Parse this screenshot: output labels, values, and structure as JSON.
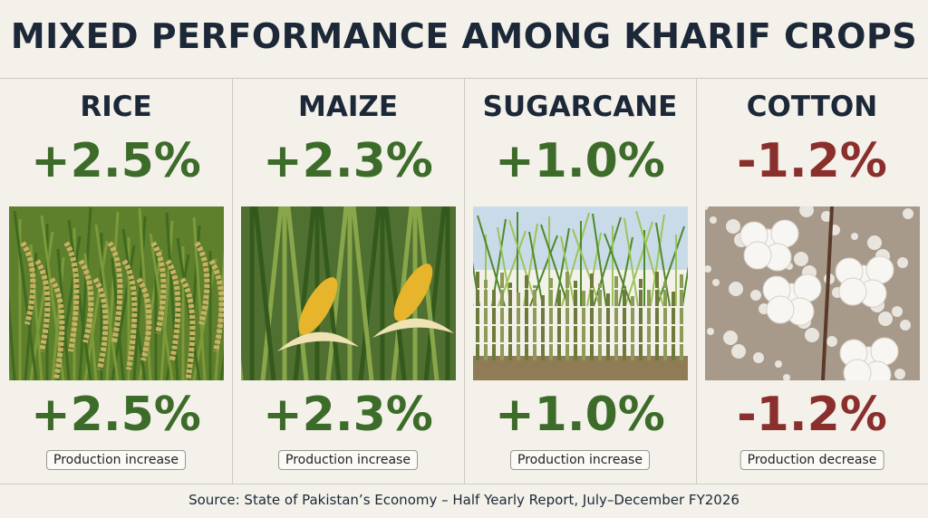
{
  "title": "MIXED PERFORMANCE AMONG KHARIF CROPS",
  "cards": [
    {
      "name": "RICE",
      "top_change": "+2.5%",
      "change": "+2.5%",
      "label": "Production increase",
      "color": "#3d6b2a"
    },
    {
      "name": "MAIZE",
      "top_change": "+2.3%",
      "change": "+2.3%",
      "label": "Production increase",
      "color": "#3d6b2a"
    },
    {
      "name": "SUGARCANE",
      "top_change": "+1.0%",
      "change": "+1.0%",
      "label": "Production increase",
      "color": "#3d6b2a"
    },
    {
      "name": "COTTON",
      "top_change": "-1.2%",
      "change": "-1.2%",
      "label": "Production decrease",
      "color": "#8a2f2c"
    }
  ],
  "source": "Source: State of Pakistan’s Economy – Half Yearly Report, July–December FY2026"
}
